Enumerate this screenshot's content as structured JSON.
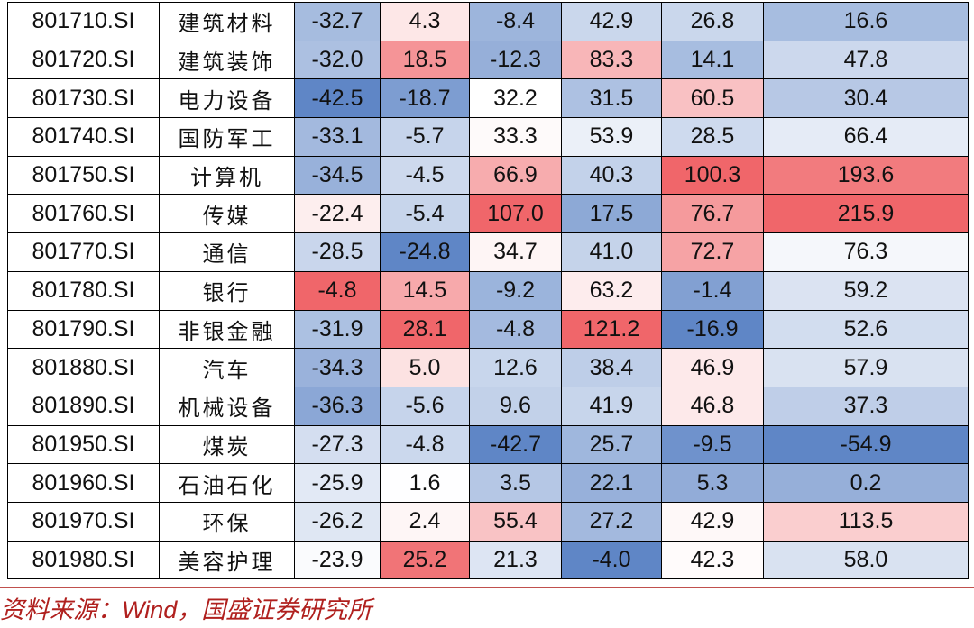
{
  "table": {
    "rows": [
      {
        "code": "801710.SI",
        "name": "建筑材料",
        "values": [
          "-32.7",
          "4.3",
          "-8.4",
          "42.9",
          "26.8",
          "16.6"
        ]
      },
      {
        "code": "801720.SI",
        "name": "建筑装饰",
        "values": [
          "-32.0",
          "18.5",
          "-12.3",
          "83.3",
          "14.1",
          "47.8"
        ]
      },
      {
        "code": "801730.SI",
        "name": "电力设备",
        "values": [
          "-42.5",
          "-18.7",
          "32.2",
          "31.5",
          "60.5",
          "30.4"
        ]
      },
      {
        "code": "801740.SI",
        "name": "国防军工",
        "values": [
          "-33.1",
          "-5.7",
          "33.3",
          "53.9",
          "28.5",
          "66.4"
        ]
      },
      {
        "code": "801750.SI",
        "name": "计算机",
        "values": [
          "-34.5",
          "-4.5",
          "66.9",
          "40.3",
          "100.3",
          "193.6"
        ]
      },
      {
        "code": "801760.SI",
        "name": "传媒",
        "values": [
          "-22.4",
          "-5.4",
          "107.0",
          "17.5",
          "76.7",
          "215.9"
        ]
      },
      {
        "code": "801770.SI",
        "name": "通信",
        "values": [
          "-28.5",
          "-24.8",
          "34.7",
          "41.0",
          "72.7",
          "76.3"
        ]
      },
      {
        "code": "801780.SI",
        "name": "银行",
        "values": [
          "-4.8",
          "14.5",
          "-9.2",
          "63.2",
          "-1.4",
          "59.2"
        ]
      },
      {
        "code": "801790.SI",
        "name": "非银金融",
        "values": [
          "-31.9",
          "28.1",
          "-4.8",
          "121.2",
          "-16.9",
          "52.6"
        ]
      },
      {
        "code": "801880.SI",
        "name": "汽车",
        "values": [
          "-34.3",
          "5.0",
          "12.6",
          "38.4",
          "46.9",
          "57.9"
        ]
      },
      {
        "code": "801890.SI",
        "name": "机械设备",
        "values": [
          "-36.3",
          "-5.6",
          "9.6",
          "41.9",
          "46.8",
          "37.3"
        ]
      },
      {
        "code": "801950.SI",
        "name": "煤炭",
        "values": [
          "-27.3",
          "-4.8",
          "-42.7",
          "25.7",
          "-9.5",
          "-54.9"
        ]
      },
      {
        "code": "801960.SI",
        "name": "石油石化",
        "values": [
          "-25.9",
          "1.6",
          "3.5",
          "22.1",
          "5.3",
          "0.2"
        ]
      },
      {
        "code": "801970.SI",
        "name": "环保",
        "values": [
          "-26.2",
          "2.4",
          "55.4",
          "27.2",
          "42.9",
          "113.5"
        ]
      },
      {
        "code": "801980.SI",
        "name": "美容护理",
        "values": [
          "-23.9",
          "25.2",
          "21.3",
          "-4.0",
          "42.3",
          "58.0"
        ]
      }
    ]
  },
  "source": {
    "prefix": "资料来源：",
    "wind": "Wind",
    "suffix": "，国盛证券研究所"
  },
  "colors": {
    "negative_max": "#5f86c6",
    "neutral": "#ffffff",
    "positive_max": "#f0666a",
    "border": "#000000",
    "source_text": "#b0201e"
  }
}
